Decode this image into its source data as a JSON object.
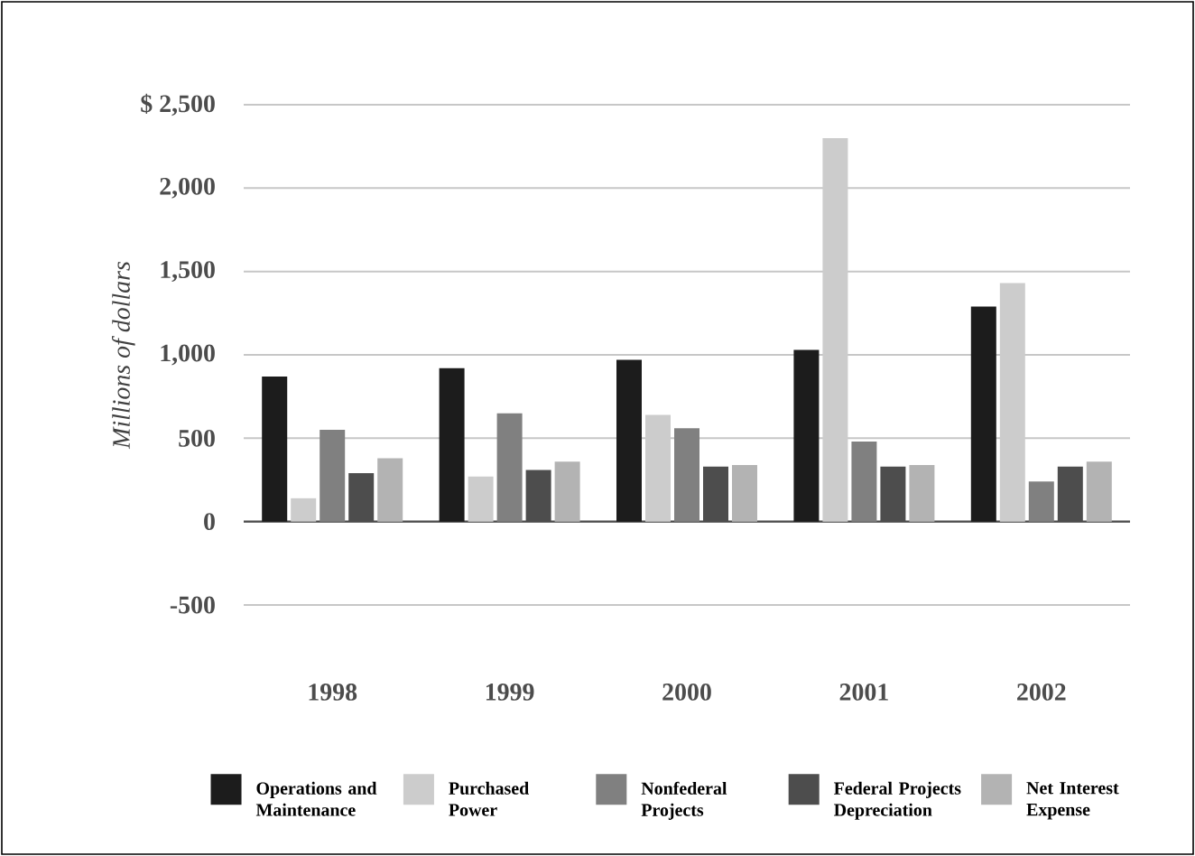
{
  "chart_data": {
    "type": "bar",
    "ylabel": "Millions of dollars",
    "categories": [
      "1998",
      "1999",
      "2000",
      "2001",
      "2002"
    ],
    "series": [
      {
        "name": "Operations and Maintenance",
        "color": "#1c1c1c",
        "values": [
          870,
          920,
          970,
          1030,
          1290
        ]
      },
      {
        "name": "Purchased Power",
        "color": "#cccccc",
        "values": [
          140,
          270,
          640,
          2300,
          1430
        ]
      },
      {
        "name": "Nonfederal Projects",
        "color": "#808080",
        "values": [
          550,
          650,
          560,
          480,
          240
        ]
      },
      {
        "name": "Federal Projects Depreciation",
        "color": "#4d4d4d",
        "values": [
          290,
          310,
          330,
          330,
          330
        ]
      },
      {
        "name": "Net Interest Expense",
        "color": "#b3b3b3",
        "values": [
          380,
          360,
          340,
          340,
          360
        ]
      }
    ],
    "ylim": [
      -500,
      2500
    ],
    "yticks": [
      -500,
      0,
      500,
      {
        "value": 1000,
        "label": "1,000"
      },
      {
        "value": 1500,
        "label": "1,500"
      },
      {
        "value": 2000,
        "label": "2,000"
      },
      {
        "value": 2500,
        "label": "$ 2,500"
      }
    ],
    "grid": "y",
    "legend": "bottom"
  }
}
